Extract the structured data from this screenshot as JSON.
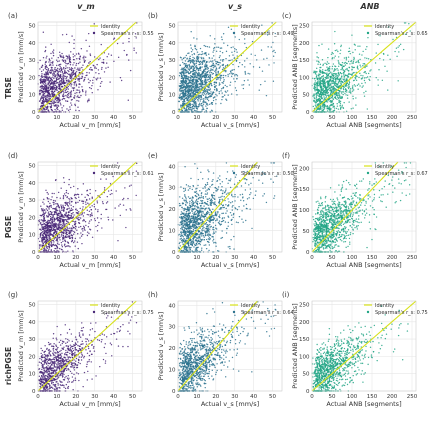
{
  "column_titles": [
    "v_m",
    "v_s",
    "ANB"
  ],
  "row_titles": [
    "TRSE",
    "PGSE",
    "richPGSE"
  ],
  "legend": {
    "identity": "Identity",
    "spearman_prefix": "Spearman's r_s:"
  },
  "colors": {
    "identity": "#d8e219",
    "grid": "#e6e6e6",
    "axis": "#555555"
  },
  "chart_data": [
    {
      "type": "scatter",
      "panel": "(a)",
      "row": "TRSE",
      "col": "v_m",
      "xlabel": "Actual v_m [mm/s]",
      "ylabel": "Predicted v_m [mm/s]",
      "xlim": [
        0,
        55
      ],
      "ylim": [
        0,
        52
      ],
      "xticks": [
        0,
        10,
        20,
        30,
        40,
        50
      ],
      "yticks": [
        0,
        10,
        20,
        30,
        40,
        50
      ],
      "spearman": "0.55",
      "point_color": "#482677",
      "n_points": 1100,
      "seed": 11,
      "spread": 0.55,
      "grid": true,
      "legend_position": "top-right"
    },
    {
      "type": "scatter",
      "panel": "(b)",
      "row": "TRSE",
      "col": "v_s",
      "xlabel": "Actual v_s [mm/s]",
      "ylabel": "Predicted v_s [mm/s]",
      "xlim": [
        0,
        55
      ],
      "ylim": [
        0,
        52
      ],
      "xticks": [
        0,
        10,
        20,
        30,
        40,
        50
      ],
      "yticks": [
        0,
        10,
        20,
        30,
        40,
        50
      ],
      "spearman": "0.49",
      "point_color": "#2c728e",
      "n_points": 1400,
      "seed": 12,
      "spread": 0.6,
      "grid": true,
      "legend_position": "top-right"
    },
    {
      "type": "scatter",
      "panel": "(c)",
      "row": "TRSE",
      "col": "ANB",
      "xlabel": "Actual ANB [segments]",
      "ylabel": "Predicted ANB [segments]",
      "xlim": [
        0,
        260
      ],
      "ylim": [
        0,
        260
      ],
      "xticks": [
        0,
        50,
        100,
        150,
        200,
        250
      ],
      "yticks": [
        0,
        50,
        100,
        150,
        200,
        250
      ],
      "spearman": "0.65",
      "point_color": "#21a585",
      "n_points": 1100,
      "seed": 13,
      "spread": 0.45,
      "grid": true,
      "legend_position": "top-right"
    },
    {
      "type": "scatter",
      "panel": "(d)",
      "row": "PGSE",
      "col": "v_m",
      "xlabel": "Actual v_m [mm/s]",
      "ylabel": "Predicted v_m [mm/s]",
      "xlim": [
        0,
        55
      ],
      "ylim": [
        0,
        52
      ],
      "xticks": [
        0,
        10,
        20,
        30,
        40,
        50
      ],
      "yticks": [
        0,
        10,
        20,
        30,
        40,
        50
      ],
      "spearman": "0.61",
      "point_color": "#482677",
      "n_points": 1100,
      "seed": 21,
      "spread": 0.5,
      "grid": true,
      "legend_position": "top-right"
    },
    {
      "type": "scatter",
      "panel": "(e)",
      "row": "PGSE",
      "col": "v_s",
      "xlabel": "Actual v_s [mm/s]",
      "ylabel": "Predicted v_s [mm/s]",
      "xlim": [
        0,
        55
      ],
      "ylim": [
        0,
        42
      ],
      "xticks": [
        0,
        10,
        20,
        30,
        40,
        50
      ],
      "yticks": [
        0,
        10,
        20,
        30,
        40
      ],
      "spearman": "0.50",
      "point_color": "#2c728e",
      "n_points": 1300,
      "seed": 22,
      "spread": 0.6,
      "grid": true,
      "legend_position": "top-right"
    },
    {
      "type": "scatter",
      "panel": "(f)",
      "row": "PGSE",
      "col": "ANB",
      "xlabel": "Actual ANB [segments]",
      "ylabel": "Predicted ANB [segments]",
      "xlim": [
        0,
        260
      ],
      "ylim": [
        0,
        215
      ],
      "xticks": [
        0,
        50,
        100,
        150,
        200,
        250
      ],
      "yticks": [
        0,
        50,
        100,
        150,
        200
      ],
      "spearman": "0.67",
      "point_color": "#21a585",
      "n_points": 1100,
      "seed": 23,
      "spread": 0.42,
      "grid": true,
      "legend_position": "top-right"
    },
    {
      "type": "scatter",
      "panel": "(g)",
      "row": "richPGSE",
      "col": "v_m",
      "xlabel": "Actual v_m [mm/s]",
      "ylabel": "Predicted v_m [mm/s]",
      "xlim": [
        0,
        55
      ],
      "ylim": [
        0,
        52
      ],
      "xticks": [
        0,
        10,
        20,
        30,
        40,
        50
      ],
      "yticks": [
        0,
        10,
        20,
        30,
        40,
        50
      ],
      "spearman": "0.75",
      "point_color": "#482677",
      "n_points": 900,
      "seed": 31,
      "spread": 0.38,
      "grid": true,
      "legend_position": "top-right"
    },
    {
      "type": "scatter",
      "panel": "(h)",
      "row": "richPGSE",
      "col": "v_s",
      "xlabel": "Actual v_s [mm/s]",
      "ylabel": "Predicted v_s [mm/s]",
      "xlim": [
        0,
        55
      ],
      "ylim": [
        0,
        42
      ],
      "xticks": [
        0,
        10,
        20,
        30,
        40,
        50
      ],
      "yticks": [
        0,
        10,
        20,
        30,
        40
      ],
      "spearman": "0.64",
      "point_color": "#2c728e",
      "n_points": 1000,
      "seed": 32,
      "spread": 0.45,
      "grid": true,
      "legend_position": "top-right"
    },
    {
      "type": "scatter",
      "panel": "(i)",
      "row": "richPGSE",
      "col": "ANB",
      "xlabel": "Actual ANB [segments]",
      "ylabel": "Predicted ANB [segments]",
      "xlim": [
        0,
        260
      ],
      "ylim": [
        0,
        260
      ],
      "xticks": [
        0,
        50,
        100,
        150,
        200,
        250
      ],
      "yticks": [
        0,
        50,
        100,
        150,
        200,
        250
      ],
      "spearman": "0.75",
      "point_color": "#21a585",
      "n_points": 1000,
      "seed": 33,
      "spread": 0.35,
      "grid": true,
      "legend_position": "top-right"
    }
  ]
}
